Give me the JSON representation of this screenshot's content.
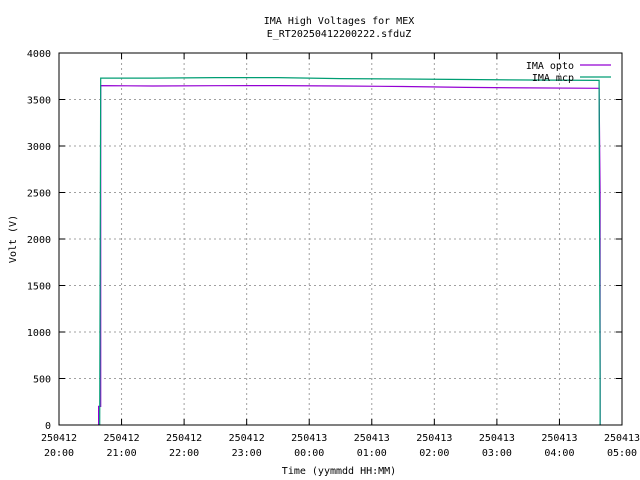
{
  "chart_data": {
    "type": "line",
    "title": "IMA High Voltages for MEX",
    "subtitle": "E_RT20250412200222.sfduZ",
    "xlabel": "Time (yymmdd HH:MM)",
    "ylabel": "Volt (V)",
    "ylim": [
      0,
      4000
    ],
    "xlim": [
      "2025-04-12 20:00",
      "2025-04-13 05:00"
    ],
    "grid": true,
    "legend_position": "top-right",
    "y_ticks": [
      "0",
      "500",
      "1000",
      "1500",
      "2000",
      "2500",
      "3000",
      "3500",
      "4000"
    ],
    "x_ticks": [
      {
        "date": "250412",
        "time": "20:00"
      },
      {
        "date": "250412",
        "time": "21:00"
      },
      {
        "date": "250412",
        "time": "22:00"
      },
      {
        "date": "250412",
        "time": "23:00"
      },
      {
        "date": "250413",
        "time": "00:00"
      },
      {
        "date": "250413",
        "time": "01:00"
      },
      {
        "date": "250413",
        "time": "02:00"
      },
      {
        "date": "250413",
        "time": "03:00"
      },
      {
        "date": "250413",
        "time": "04:00"
      },
      {
        "date": "250413",
        "time": "05:00"
      }
    ],
    "series": [
      {
        "name": "IMA opto",
        "color": "#9400d3",
        "points": [
          [
            "2025-04-12 20:38",
            0
          ],
          [
            "2025-04-12 20:38",
            200
          ],
          [
            "2025-04-12 20:40",
            200
          ],
          [
            "2025-04-12 20:40",
            3650
          ],
          [
            "2025-04-12 21:30",
            3645
          ],
          [
            "2025-04-12 22:30",
            3648
          ],
          [
            "2025-04-12 23:30",
            3650
          ],
          [
            "2025-04-13 00:30",
            3645
          ],
          [
            "2025-04-13 01:30",
            3640
          ],
          [
            "2025-04-13 02:30",
            3630
          ],
          [
            "2025-04-13 03:30",
            3625
          ],
          [
            "2025-04-13 04:38",
            3620
          ],
          [
            "2025-04-13 04:38",
            3600
          ],
          [
            "2025-04-13 04:39",
            2500
          ],
          [
            "2025-04-13 04:39",
            0
          ]
        ]
      },
      {
        "name": "IMA mcp",
        "color": "#009e73",
        "points": [
          [
            "2025-04-12 20:39",
            0
          ],
          [
            "2025-04-12 20:40",
            3730
          ],
          [
            "2025-04-12 21:30",
            3730
          ],
          [
            "2025-04-12 22:30",
            3735
          ],
          [
            "2025-04-12 23:30",
            3735
          ],
          [
            "2025-04-13 00:30",
            3725
          ],
          [
            "2025-04-13 01:30",
            3720
          ],
          [
            "2025-04-13 02:30",
            3715
          ],
          [
            "2025-04-13 03:30",
            3710
          ],
          [
            "2025-04-13 04:38",
            3705
          ],
          [
            "2025-04-13 04:39",
            500
          ],
          [
            "2025-04-13 04:39",
            0
          ]
        ]
      }
    ]
  }
}
